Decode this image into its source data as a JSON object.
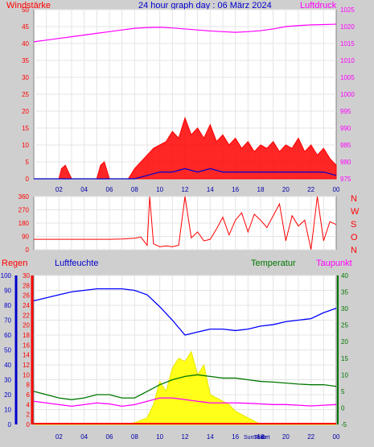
{
  "title": "24 hour graph day : 06 März 2024",
  "colors": {
    "background": "#cfcfcf",
    "plot_bg": "#ffffff",
    "wind": "#ff0000",
    "gust_blue": "#0000cc",
    "gust_green": "#00aa00",
    "pressure": "#ff00ff",
    "direction": "#ff0000",
    "humidity": "#0000ff",
    "temperature": "#007700",
    "dewpoint": "#ff00ff",
    "rain": "#ff0000",
    "solar": "#ffff00",
    "time_axis": "#0000aa"
  },
  "chart_data": [
    {
      "type": "line",
      "left_label": "Windstärke",
      "right_label": "Luftdruck",
      "y_left_ticks": [
        "0",
        "5",
        "10",
        "15",
        "20",
        "25",
        "30",
        "35",
        "40",
        "45",
        "50"
      ],
      "y_right_ticks": [
        "975",
        "980",
        "985",
        "990",
        "995",
        "1000",
        "1005",
        "1010",
        "1015",
        "1020",
        "1025"
      ],
      "ylim_left": [
        0,
        50
      ],
      "ylim_right": [
        975,
        1025
      ],
      "x_ticks": [
        "02",
        "04",
        "06",
        "08",
        "10",
        "12",
        "14",
        "16",
        "18",
        "20",
        "22",
        "00"
      ],
      "series": [
        {
          "name": "Luftdruck",
          "axis": "right",
          "x": [
            0,
            1,
            2,
            3,
            4,
            5,
            6,
            7,
            8,
            9,
            10,
            11,
            12,
            13,
            14,
            15,
            16,
            17,
            18,
            19,
            20,
            21,
            22,
            23,
            24
          ],
          "values": [
            1015.5,
            1016,
            1016.5,
            1017,
            1017.5,
            1018,
            1018.5,
            1019,
            1019.5,
            1019.7,
            1019.8,
            1019.6,
            1019.3,
            1019,
            1018.7,
            1018.5,
            1018.3,
            1018.5,
            1018.8,
            1019.3,
            1020,
            1020.3,
            1020.5,
            1020.6,
            1020.7
          ]
        },
        {
          "name": "Windstärke",
          "axis": "left",
          "x": [
            0,
            1,
            2,
            2.2,
            2.5,
            3,
            5,
            5.3,
            5.6,
            6,
            7.5,
            8,
            8.5,
            9,
            9.5,
            10,
            10.5,
            11,
            11.5,
            12,
            12.5,
            13,
            13.5,
            14,
            14.5,
            15,
            15.5,
            16,
            16.5,
            17,
            17.5,
            18,
            18.5,
            19,
            19.5,
            20,
            20.5,
            21,
            21.5,
            22,
            22.5,
            23,
            23.5,
            24
          ],
          "values": [
            0,
            0,
            0,
            3,
            4,
            0,
            0,
            4,
            5,
            0,
            0,
            3,
            5,
            7,
            9,
            10,
            11,
            14,
            12,
            18,
            13,
            15,
            12,
            16,
            11,
            13,
            10,
            12,
            9,
            11,
            8,
            10,
            9,
            11,
            8,
            10,
            9,
            12,
            8,
            10,
            7,
            9,
            6,
            4
          ]
        },
        {
          "name": "Gust",
          "axis": "left",
          "x": [
            0,
            8,
            9,
            10,
            11,
            12,
            13,
            14,
            15,
            16,
            17,
            18,
            19,
            20,
            21,
            22,
            23,
            24
          ],
          "values": [
            0,
            0,
            1,
            2,
            2,
            3,
            2,
            3,
            2,
            2,
            2,
            2,
            2,
            2,
            2,
            2,
            2,
            1
          ]
        }
      ]
    },
    {
      "type": "scatter",
      "y_ticks": [
        "0",
        "90",
        "180",
        "270",
        "360"
      ],
      "ylim": [
        0,
        360
      ],
      "right_labels": [
        "N",
        "W",
        "S",
        "O",
        "N"
      ],
      "x": [
        0,
        1,
        2,
        3,
        4,
        5,
        6,
        7,
        8,
        8.5,
        9,
        9.2,
        9.5,
        10,
        10.5,
        11,
        11.5,
        12,
        12.5,
        13,
        13.5,
        14,
        14.5,
        15,
        15.5,
        16,
        16.5,
        17,
        17.5,
        18,
        18.5,
        19,
        19.5,
        20,
        20.5,
        21,
        21.5,
        22,
        22.5,
        23,
        23.5,
        24
      ],
      "values": [
        70,
        70,
        70,
        70,
        70,
        70,
        70,
        72,
        78,
        85,
        30,
        360,
        40,
        20,
        25,
        20,
        30,
        360,
        80,
        120,
        60,
        70,
        140,
        220,
        100,
        200,
        250,
        120,
        240,
        200,
        150,
        230,
        310,
        60,
        230,
        160,
        200,
        0,
        360,
        60,
        190,
        170
      ]
    },
    {
      "type": "line",
      "left_labels": [
        "Regen",
        "Luftfeuchte"
      ],
      "right_labels": [
        "Temperatur",
        "Taupunkt"
      ],
      "humidity_ticks": [
        "0",
        "10",
        "20",
        "30",
        "40",
        "50",
        "60",
        "70",
        "80",
        "90",
        "100"
      ],
      "rain_ticks": [
        "0",
        "2",
        "4",
        "6",
        "8",
        "10",
        "12",
        "14",
        "16",
        "18",
        "20",
        "22",
        "24",
        "26",
        "28",
        "30"
      ],
      "temp_ticks": [
        "-5",
        "0",
        "5",
        "10",
        "15",
        "20",
        "25",
        "30",
        "35",
        "40"
      ],
      "ylim_humidity": [
        0,
        100
      ],
      "ylim_temp": [
        -5,
        40
      ],
      "x_ticks": [
        "02",
        "04",
        "06",
        "08",
        "10",
        "12",
        "14",
        "16",
        "18",
        "20",
        "22",
        "00"
      ],
      "x_annotations": [
        "Sun",
        "Rise",
        "Sun",
        "Set"
      ],
      "series": [
        {
          "name": "Luftfeuchte",
          "axis": "humidity",
          "x": [
            0,
            1,
            2,
            3,
            4,
            5,
            6,
            7,
            8,
            9,
            10,
            11,
            12,
            13,
            14,
            15,
            16,
            17,
            18,
            19,
            20,
            21,
            22,
            23,
            24
          ],
          "values": [
            83,
            85,
            87,
            89,
            90,
            91,
            91,
            91,
            90,
            87,
            79,
            70,
            60,
            62,
            64,
            64,
            63,
            64,
            66,
            67,
            69,
            70,
            71,
            75,
            78
          ]
        },
        {
          "name": "Temperatur",
          "axis": "temp",
          "x": [
            0,
            1,
            2,
            3,
            4,
            5,
            6,
            7,
            8,
            9,
            10,
            11,
            12,
            13,
            14,
            15,
            16,
            17,
            18,
            19,
            20,
            21,
            22,
            23,
            24
          ],
          "values": [
            5,
            4,
            3,
            2.5,
            3,
            4,
            4,
            3,
            3,
            5,
            7,
            8.5,
            9.5,
            10,
            9.5,
            9,
            9,
            8.5,
            8,
            7.8,
            7.5,
            7.2,
            7,
            7,
            6.5
          ]
        },
        {
          "name": "Taupunkt",
          "axis": "temp",
          "x": [
            0,
            1,
            2,
            3,
            4,
            5,
            6,
            7,
            8,
            9,
            10,
            11,
            12,
            13,
            14,
            15,
            16,
            17,
            18,
            19,
            20,
            21,
            22,
            23,
            24
          ],
          "values": [
            2,
            1.5,
            1,
            0.5,
            1,
            1.5,
            1.2,
            0.5,
            1,
            2,
            3,
            3,
            2.5,
            2,
            1.5,
            1.5,
            1.5,
            1.4,
            1.2,
            1,
            1,
            0.8,
            0.6,
            0.8,
            1
          ]
        },
        {
          "name": "Solar",
          "axis": "temp",
          "x": [
            0,
            5,
            6,
            7,
            8,
            9,
            9.5,
            10,
            10.5,
            11,
            11.5,
            12,
            12.5,
            13,
            13.5,
            14,
            14.5,
            15,
            15.5,
            16,
            16.5,
            17,
            18,
            24
          ],
          "values": [
            -5,
            -5,
            -5,
            -5,
            -4.5,
            -3,
            1,
            8,
            5,
            12,
            15,
            14,
            17,
            10,
            13,
            4,
            3,
            2,
            1,
            -1,
            -2,
            -3,
            -5,
            -5
          ]
        }
      ]
    }
  ]
}
